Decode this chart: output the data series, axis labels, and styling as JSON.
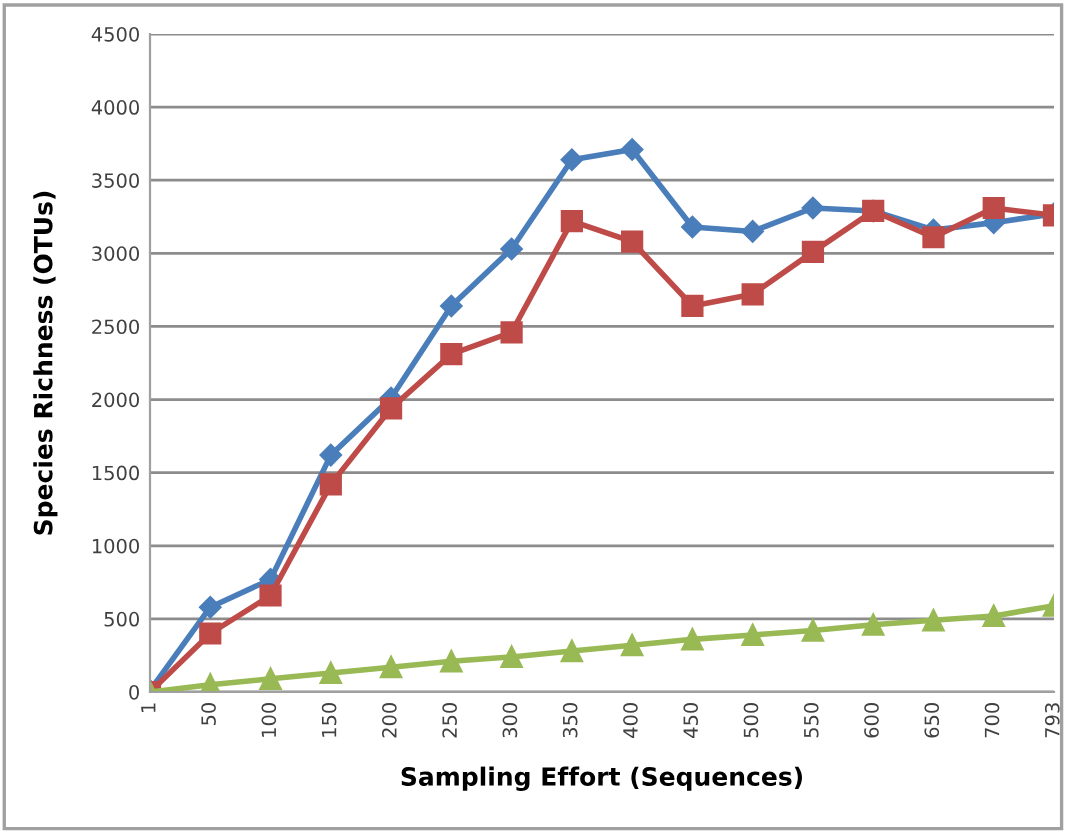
{
  "chart_data": {
    "type": "line",
    "xlabel": "Sampling Effort (Sequences)",
    "ylabel": "Species Richness (OTUs)",
    "categories": [
      "1",
      "50",
      "100",
      "150",
      "200",
      "250",
      "300",
      "350",
      "400",
      "450",
      "500",
      "550",
      "600",
      "650",
      "700",
      "793"
    ],
    "series": [
      {
        "color": "#4a7ebb",
        "marker": "diamond",
        "values": [
          10,
          580,
          770,
          1620,
          2010,
          2640,
          3030,
          3640,
          3710,
          3180,
          3150,
          3310,
          3290,
          3160,
          3210,
          3270
        ]
      },
      {
        "color": "#be4b48",
        "marker": "square",
        "values": [
          0,
          400,
          660,
          1420,
          1940,
          2310,
          2460,
          3220,
          3080,
          2640,
          2720,
          3010,
          3290,
          3110,
          3310,
          3260
        ]
      },
      {
        "color": "#98b954",
        "marker": "triangle",
        "values": [
          0,
          50,
          90,
          130,
          170,
          210,
          240,
          280,
          320,
          360,
          390,
          420,
          460,
          490,
          520,
          590
        ]
      }
    ],
    "ylim": [
      0,
      4500
    ],
    "yticks": [
      0,
      500,
      1000,
      1500,
      2000,
      2500,
      3000,
      3500,
      4000,
      4500
    ],
    "grid": "y",
    "line_style": "solid"
  }
}
